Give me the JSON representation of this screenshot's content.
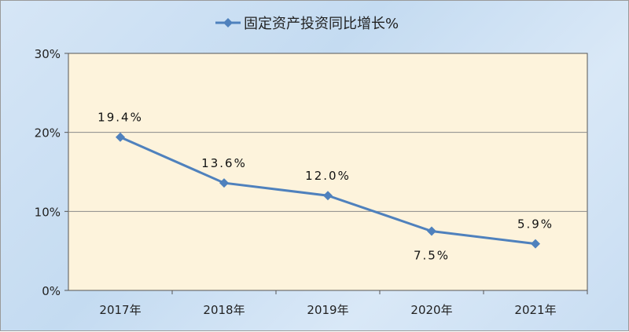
{
  "chart_data": {
    "type": "line",
    "categories": [
      "2017年",
      "2018年",
      "2019年",
      "2020年",
      "2021年"
    ],
    "series": [
      {
        "name": "固定资产投资同比增长%",
        "values": [
          19.4,
          13.6,
          12.0,
          7.5,
          5.9
        ],
        "color": "#4f81bd"
      }
    ],
    "data_labels": [
      "19.4%",
      "13.6%",
      "12.0%",
      "7.5%",
      "5.9%"
    ],
    "yticks": [
      "0%",
      "10%",
      "20%",
      "30%"
    ],
    "ylim": [
      0,
      30
    ],
    "grid": true,
    "legend": "top",
    "plot_background": "#fdf3dc"
  }
}
